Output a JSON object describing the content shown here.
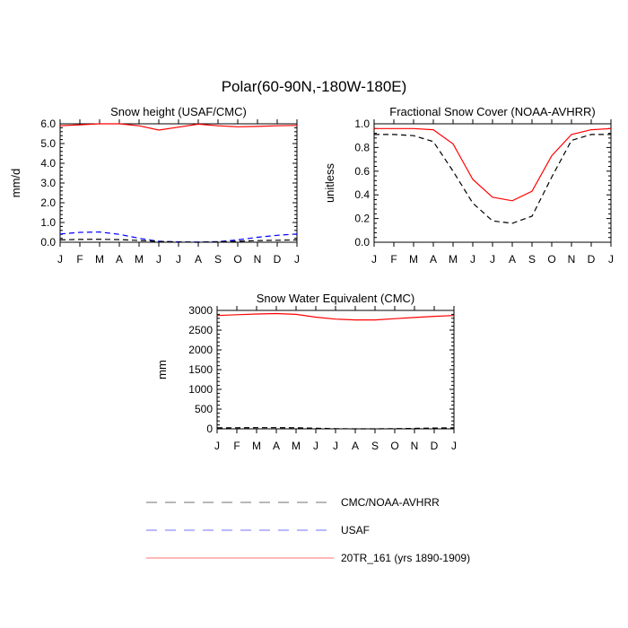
{
  "page": {
    "title": "Polar(60-90N,-180W-180E)"
  },
  "legend": {
    "items": [
      {
        "label": "CMC/NOAA-AVHRR",
        "color": "#000000",
        "dash": "dashed"
      },
      {
        "label": "USAF",
        "color": "#0000ff",
        "dash": "dashed"
      },
      {
        "label": "20TR_161 (yrs 1890-1909)",
        "color": "#ff0000",
        "dash": "solid"
      }
    ]
  },
  "chart_data": [
    {
      "type": "line",
      "title": "Snow height (USAF/CMC)",
      "xlabel": "",
      "ylabel": "mm/d",
      "categories": [
        "J",
        "F",
        "M",
        "A",
        "M",
        "J",
        "J",
        "A",
        "S",
        "O",
        "N",
        "D",
        "J"
      ],
      "ylim": [
        0,
        6
      ],
      "yticks": [
        "0.0",
        "1.0",
        "2.0",
        "3.0",
        "4.0",
        "5.0",
        "6.0"
      ],
      "series": [
        {
          "name": "20TR_161 (yrs 1890-1909)",
          "color": "#ff0000",
          "dash": "solid",
          "values": [
            5.9,
            5.95,
            6.0,
            6.0,
            5.9,
            5.68,
            5.83,
            5.98,
            5.9,
            5.85,
            5.87,
            5.9,
            5.92
          ]
        },
        {
          "name": "USAF",
          "color": "#0000ff",
          "dash": "dashed",
          "values": [
            0.42,
            0.5,
            0.52,
            0.4,
            0.2,
            0.05,
            0.02,
            0.01,
            0.03,
            0.12,
            0.25,
            0.35,
            0.42
          ]
        },
        {
          "name": "CMC/NOAA-AVHRR",
          "color": "#000000",
          "dash": "dashed",
          "values": [
            0.12,
            0.14,
            0.15,
            0.13,
            0.09,
            0.04,
            0.01,
            0.0,
            0.02,
            0.05,
            0.08,
            0.1,
            0.12
          ]
        }
      ]
    },
    {
      "type": "line",
      "title": "Fractional Snow Cover (NOAA-AVHRR)",
      "xlabel": "",
      "ylabel": "unitless",
      "categories": [
        "J",
        "F",
        "M",
        "A",
        "M",
        "J",
        "J",
        "A",
        "S",
        "O",
        "N",
        "D",
        "J"
      ],
      "ylim": [
        0,
        1
      ],
      "yticks": [
        "0.0",
        "0.2",
        "0.4",
        "0.6",
        "0.8",
        "1.0"
      ],
      "series": [
        {
          "name": "20TR_161 (yrs 1890-1909)",
          "color": "#ff0000",
          "dash": "solid",
          "values": [
            0.96,
            0.96,
            0.96,
            0.95,
            0.83,
            0.53,
            0.38,
            0.35,
            0.43,
            0.73,
            0.91,
            0.95,
            0.96
          ]
        },
        {
          "name": "CMC/NOAA-AVHRR",
          "color": "#000000",
          "dash": "dashed",
          "values": [
            0.91,
            0.91,
            0.9,
            0.85,
            0.6,
            0.33,
            0.18,
            0.16,
            0.22,
            0.55,
            0.86,
            0.91,
            0.91
          ]
        }
      ]
    },
    {
      "type": "line",
      "title": "Snow Water Equivalent (CMC)",
      "xlabel": "",
      "ylabel": "mm",
      "categories": [
        "J",
        "F",
        "M",
        "A",
        "M",
        "J",
        "J",
        "A",
        "S",
        "O",
        "N",
        "D",
        "J"
      ],
      "ylim": [
        0,
        3000
      ],
      "yticks": [
        "0",
        "500",
        "1000",
        "1500",
        "2000",
        "2500",
        "3000"
      ],
      "series": [
        {
          "name": "20TR_161 (yrs 1890-1909)",
          "color": "#ff0000",
          "dash": "solid",
          "values": [
            2870,
            2890,
            2910,
            2920,
            2900,
            2830,
            2780,
            2760,
            2760,
            2790,
            2820,
            2850,
            2870
          ]
        },
        {
          "name": "CMC/NOAA-AVHRR",
          "color": "#000000",
          "dash": "dashed",
          "values": [
            25,
            28,
            30,
            30,
            28,
            15,
            5,
            0,
            0,
            5,
            12,
            20,
            25
          ]
        }
      ]
    }
  ]
}
